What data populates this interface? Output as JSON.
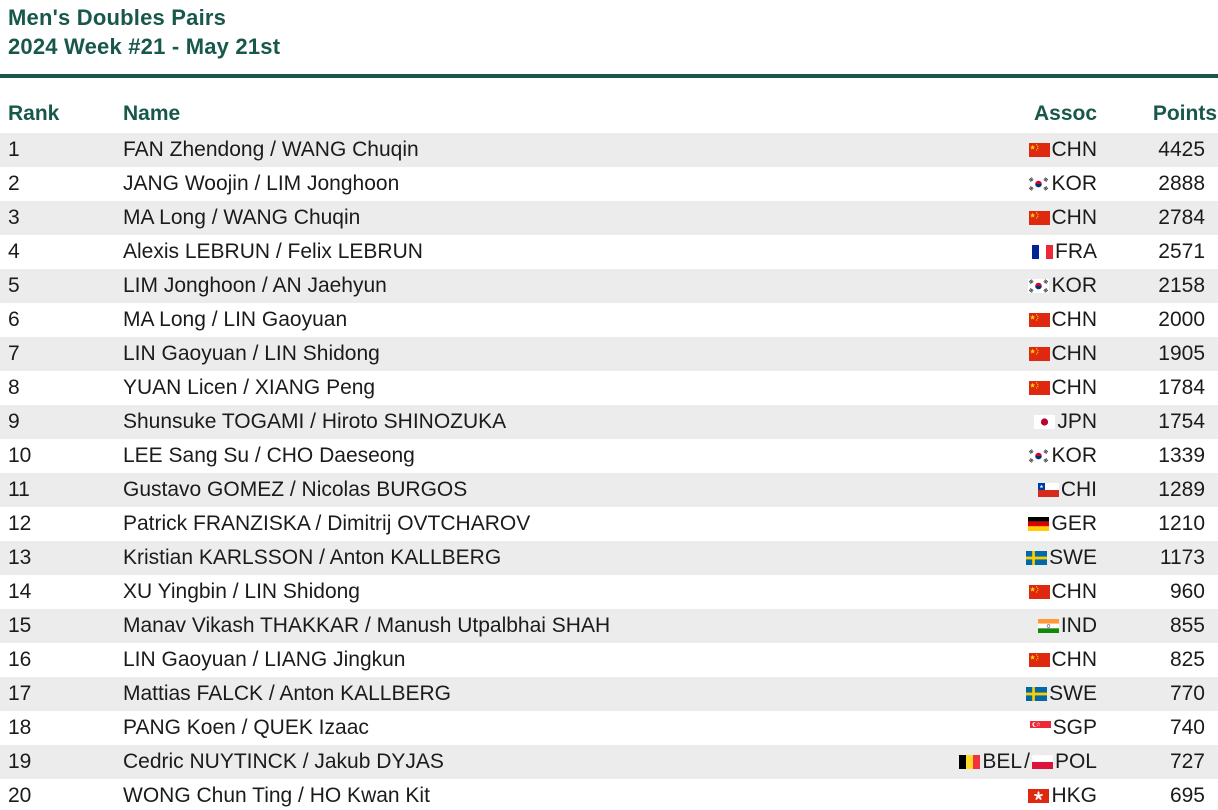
{
  "title": {
    "line1": "Men's Doubles Pairs",
    "line2": "2024 Week #21 - May 21st"
  },
  "columns": {
    "rank": "Rank",
    "name": "Name",
    "assoc": "Assoc",
    "points": "Points"
  },
  "colors": {
    "accent_green": "#17584a",
    "row_alt_gray": "#ececec",
    "text": "#1b1b1b"
  },
  "assoc_separator": " / ",
  "rows": [
    {
      "rank": "1",
      "name": "FAN Zhendong / WANG Chuqin",
      "assoc": [
        "CHN"
      ],
      "points": "4425"
    },
    {
      "rank": "2",
      "name": "JANG Woojin / LIM Jonghoon",
      "assoc": [
        "KOR"
      ],
      "points": "2888"
    },
    {
      "rank": "3",
      "name": "MA Long / WANG Chuqin",
      "assoc": [
        "CHN"
      ],
      "points": "2784"
    },
    {
      "rank": "4",
      "name": "Alexis LEBRUN / Felix LEBRUN",
      "assoc": [
        "FRA"
      ],
      "points": "2571"
    },
    {
      "rank": "5",
      "name": "LIM Jonghoon / AN Jaehyun",
      "assoc": [
        "KOR"
      ],
      "points": "2158"
    },
    {
      "rank": "6",
      "name": "MA Long / LIN Gaoyuan",
      "assoc": [
        "CHN"
      ],
      "points": "2000"
    },
    {
      "rank": "7",
      "name": "LIN Gaoyuan / LIN Shidong",
      "assoc": [
        "CHN"
      ],
      "points": "1905"
    },
    {
      "rank": "8",
      "name": "YUAN Licen / XIANG Peng",
      "assoc": [
        "CHN"
      ],
      "points": "1784"
    },
    {
      "rank": "9",
      "name": "Shunsuke TOGAMI / Hiroto SHINOZUKA",
      "assoc": [
        "JPN"
      ],
      "points": "1754"
    },
    {
      "rank": "10",
      "name": "LEE Sang Su / CHO Daeseong",
      "assoc": [
        "KOR"
      ],
      "points": "1339"
    },
    {
      "rank": "11",
      "name": "Gustavo GOMEZ / Nicolas BURGOS",
      "assoc": [
        "CHI"
      ],
      "points": "1289"
    },
    {
      "rank": "12",
      "name": "Patrick FRANZISKA / Dimitrij OVTCHAROV",
      "assoc": [
        "GER"
      ],
      "points": "1210"
    },
    {
      "rank": "13",
      "name": "Kristian KARLSSON / Anton KALLBERG",
      "assoc": [
        "SWE"
      ],
      "points": "1173"
    },
    {
      "rank": "14",
      "name": "XU Yingbin / LIN Shidong",
      "assoc": [
        "CHN"
      ],
      "points": "960"
    },
    {
      "rank": "15",
      "name": "Manav Vikash THAKKAR / Manush Utpalbhai SHAH",
      "assoc": [
        "IND"
      ],
      "points": "855"
    },
    {
      "rank": "16",
      "name": "LIN Gaoyuan / LIANG Jingkun",
      "assoc": [
        "CHN"
      ],
      "points": "825"
    },
    {
      "rank": "17",
      "name": "Mattias FALCK / Anton KALLBERG",
      "assoc": [
        "SWE"
      ],
      "points": "770"
    },
    {
      "rank": "18",
      "name": "PANG Koen / QUEK Izaac",
      "assoc": [
        "SGP"
      ],
      "points": "740"
    },
    {
      "rank": "19",
      "name": "Cedric NUYTINCK / Jakub DYJAS",
      "assoc": [
        "BEL",
        "POL"
      ],
      "points": "727"
    },
    {
      "rank": "20",
      "name": "WONG Chun Ting / HO Kwan Kit",
      "assoc": [
        "HKG"
      ],
      "points": "695"
    }
  ]
}
